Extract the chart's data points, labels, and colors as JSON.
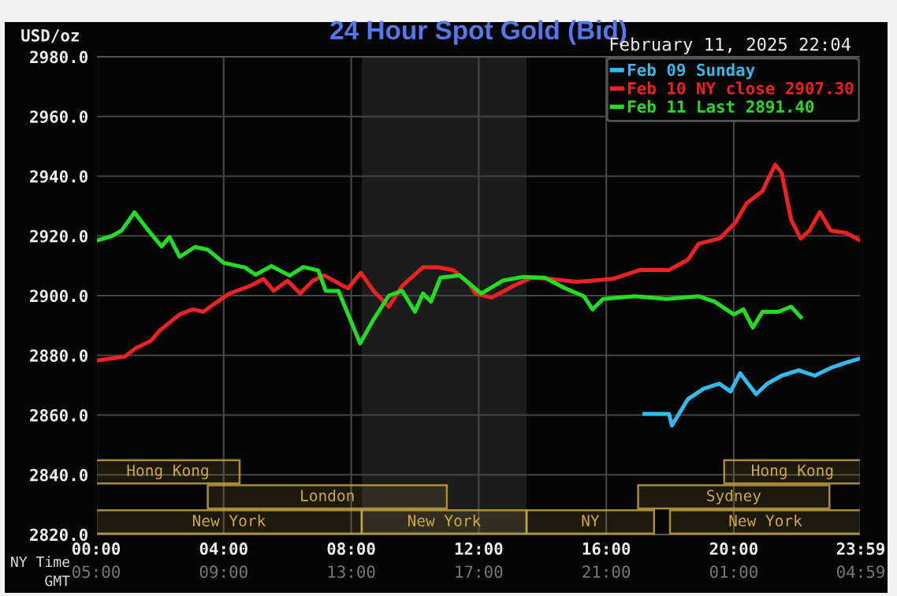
{
  "chart_data": {
    "type": "line",
    "title": "24 Hour Spot Gold (Bid)",
    "subtitle": "February 11, 2025 22:04",
    "ylabel": "USD/oz",
    "xlabel": "NY Time",
    "x2label": "GMT",
    "xlim": [
      0,
      23.983
    ],
    "ylim": [
      2820,
      2980
    ],
    "xticks": [
      {
        "value": 0,
        "label": "00:00"
      },
      {
        "value": 4,
        "label": "04:00"
      },
      {
        "value": 8,
        "label": "08:00"
      },
      {
        "value": 12,
        "label": "12:00"
      },
      {
        "value": 16,
        "label": "16:00"
      },
      {
        "value": 20,
        "label": "20:00"
      },
      {
        "value": 23.983,
        "label": "23:59"
      }
    ],
    "x2lim": [
      "2025-02-11T05:00",
      "2025-02-12T04:59"
    ],
    "x2ticks": [
      {
        "value": "2025-02-11T05:00",
        "label": "05:00"
      },
      {
        "value": "2025-02-11T09:00",
        "label": "09:00"
      },
      {
        "value": "2025-02-11T13:00",
        "label": "13:00"
      },
      {
        "value": "2025-02-11T17:00",
        "label": "17:00"
      },
      {
        "value": "2025-02-11T21:00",
        "label": "21:00"
      },
      {
        "value": "2025-02-12T01:00",
        "label": "01:00"
      },
      {
        "value": "2025-02-12T04:59",
        "label": "04:59"
      }
    ],
    "yticks": [
      {
        "value": 2820,
        "label": "2820.0"
      },
      {
        "value": 2840,
        "label": "2840.0"
      },
      {
        "value": 2860,
        "label": "2860.0"
      },
      {
        "value": 2880,
        "label": "2880.0"
      },
      {
        "value": 2900,
        "label": "2900.0"
      },
      {
        "value": 2920,
        "label": "2920.0"
      },
      {
        "value": 2940,
        "label": "2940.0"
      },
      {
        "value": 2960,
        "label": "2960.0"
      },
      {
        "value": 2980,
        "label": "2980.0"
      }
    ],
    "grid": true,
    "legend": "top right",
    "marker": "none",
    "line_style": "solid",
    "series": [
      {
        "name": "Feb 09 Sunday",
        "color": "#33bbee",
        "x": [
          17.2,
          17.97,
          18.06,
          18.56,
          19.05,
          19.55,
          19.9,
          20.2,
          20.7,
          21.05,
          21.5,
          22.04,
          22.54,
          23.04,
          23.53,
          23.98
        ],
        "values": [
          2860.4,
          2860.4,
          2856.5,
          2865.3,
          2868.8,
          2870.5,
          2867.9,
          2874,
          2867,
          2870.5,
          2873.2,
          2875,
          2873.2,
          2875.8,
          2877.6,
          2879
        ]
      },
      {
        "name": "Feb 10 NY close 2907.30",
        "color": "#ee2222",
        "x": [
          0,
          0.9,
          1.23,
          1.72,
          2.0,
          2.62,
          3.03,
          3.36,
          3.93,
          4.18,
          4.84,
          5.25,
          5.57,
          6.0,
          6.4,
          6.8,
          7.15,
          7.9,
          8.3,
          8.7,
          9.18,
          9.6,
          10.25,
          10.7,
          11.2,
          11.7,
          11.9,
          12.4,
          13.1,
          13.65,
          14.24,
          15.07,
          16.2,
          17.06,
          17.97,
          18.56,
          18.9,
          19.55,
          20.05,
          20.4,
          20.9,
          21.3,
          21.5,
          21.8,
          22.1,
          22.37,
          22.7,
          23.04,
          23.53,
          23.98
        ],
        "values": [
          2878.2,
          2879.6,
          2882.3,
          2884.9,
          2888.4,
          2893.7,
          2895.4,
          2894.6,
          2898.9,
          2900.7,
          2903.3,
          2905.6,
          2901.6,
          2905,
          2900.7,
          2905,
          2906.8,
          2902.4,
          2907.7,
          2901.6,
          2896.3,
          2903.3,
          2909.5,
          2909.5,
          2908.6,
          2904,
          2900.7,
          2899.3,
          2903.3,
          2906,
          2905.6,
          2904.6,
          2905.6,
          2908.6,
          2908.6,
          2912,
          2917.4,
          2919.1,
          2924.4,
          2930.9,
          2935,
          2943.9,
          2941.2,
          2925.4,
          2919.1,
          2921.8,
          2928,
          2921.8,
          2921,
          2918.4
        ]
      },
      {
        "name": "Feb 11 Last 2891.40",
        "color": "#22dd22",
        "x": [
          0,
          0.5,
          0.8,
          1.2,
          1.64,
          2.05,
          2.3,
          2.62,
          3.1,
          3.5,
          4.0,
          4.67,
          5.0,
          5.5,
          6.07,
          6.5,
          6.97,
          7.2,
          7.6,
          8.28,
          8.7,
          9.18,
          9.6,
          10.0,
          10.25,
          10.5,
          10.8,
          11.4,
          12.08,
          12.75,
          13.4,
          14.07,
          14.7,
          15.3,
          15.57,
          15.9,
          16.9,
          17.9,
          18.9,
          19.4,
          20.0,
          20.3,
          20.6,
          20.9,
          21.4,
          21.8,
          22.1
        ],
        "values": [
          2918.4,
          2920,
          2921.8,
          2927.9,
          2921.8,
          2916.5,
          2919.6,
          2913,
          2916.3,
          2915.4,
          2911,
          2909.4,
          2907,
          2909.9,
          2906.7,
          2909.6,
          2908.4,
          2901.6,
          2901.6,
          2884,
          2892,
          2900,
          2901.6,
          2894.6,
          2900.7,
          2898,
          2906,
          2906.8,
          2900.7,
          2905,
          2906.3,
          2906,
          2902.5,
          2899.8,
          2895.4,
          2898.9,
          2899.8,
          2898.9,
          2899.8,
          2898,
          2893.7,
          2895.4,
          2889.3,
          2894.6,
          2894.6,
          2896.3,
          2892.8
        ]
      }
    ],
    "bands": [
      {
        "axis": "x",
        "from": 8.33,
        "to": 13.5,
        "color": "#1c1c1c"
      },
      {
        "axis": "x",
        "from": 0,
        "to": 4.5,
        "label": "Hong Kong",
        "color": "#ccaa44"
      },
      {
        "axis": "x",
        "from": 3.5,
        "to": 11.0,
        "label": "London",
        "color": "#ccaa44"
      },
      {
        "axis": "x",
        "from": 0,
        "to": 8.33,
        "label": "New York",
        "color": "#ccaa44"
      },
      {
        "axis": "x",
        "from": 8.33,
        "to": 13.5,
        "label": "New York",
        "color": "#ccaa44"
      },
      {
        "axis": "x",
        "from": 13.5,
        "to": 17.5,
        "label": "NY",
        "color": "#ccaa44"
      },
      {
        "axis": "x",
        "from": 17.0,
        "to": 23.0,
        "label": "Sydney",
        "color": "#ccaa44"
      },
      {
        "axis": "x",
        "from": 19.7,
        "to": 23.983,
        "label": "Hong Kong",
        "color": "#ccaa44"
      },
      {
        "axis": "x",
        "from": 18.0,
        "to": 23.983,
        "label": "New York",
        "color": "#ccaa44"
      }
    ]
  }
}
